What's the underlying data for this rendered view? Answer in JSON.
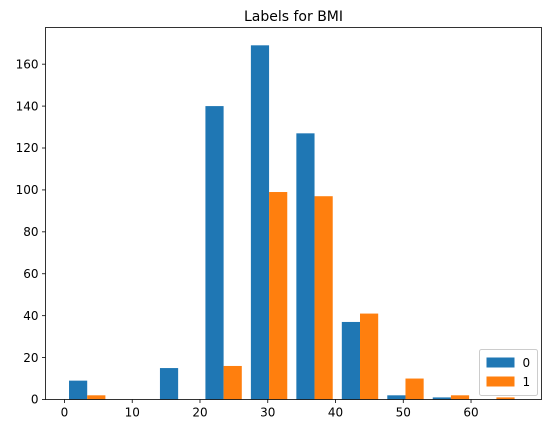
{
  "chart_data": {
    "type": "bar",
    "title": "Labels for BMI",
    "xlabel": "",
    "ylabel": "",
    "xlim": [
      -2.8,
      70.4
    ],
    "ylim": [
      0,
      177.5
    ],
    "xticks": [
      0,
      10,
      20,
      30,
      40,
      50,
      60
    ],
    "yticks": [
      0,
      20,
      40,
      60,
      80,
      100,
      120,
      140,
      160
    ],
    "bin_edges": [
      0,
      6.71,
      13.42,
      20.13,
      26.84,
      33.55,
      40.26,
      46.97,
      53.68,
      60.39,
      67.1
    ],
    "series": [
      {
        "name": "0",
        "color": "#1f77b4",
        "values": [
          9,
          0,
          15,
          140,
          169,
          127,
          37,
          2,
          1,
          0
        ]
      },
      {
        "name": "1",
        "color": "#ff7f0e",
        "values": [
          2,
          0,
          0,
          16,
          99,
          97,
          41,
          10,
          2,
          1
        ]
      }
    ],
    "legend": {
      "position": "lower-right"
    },
    "grid": false
  }
}
